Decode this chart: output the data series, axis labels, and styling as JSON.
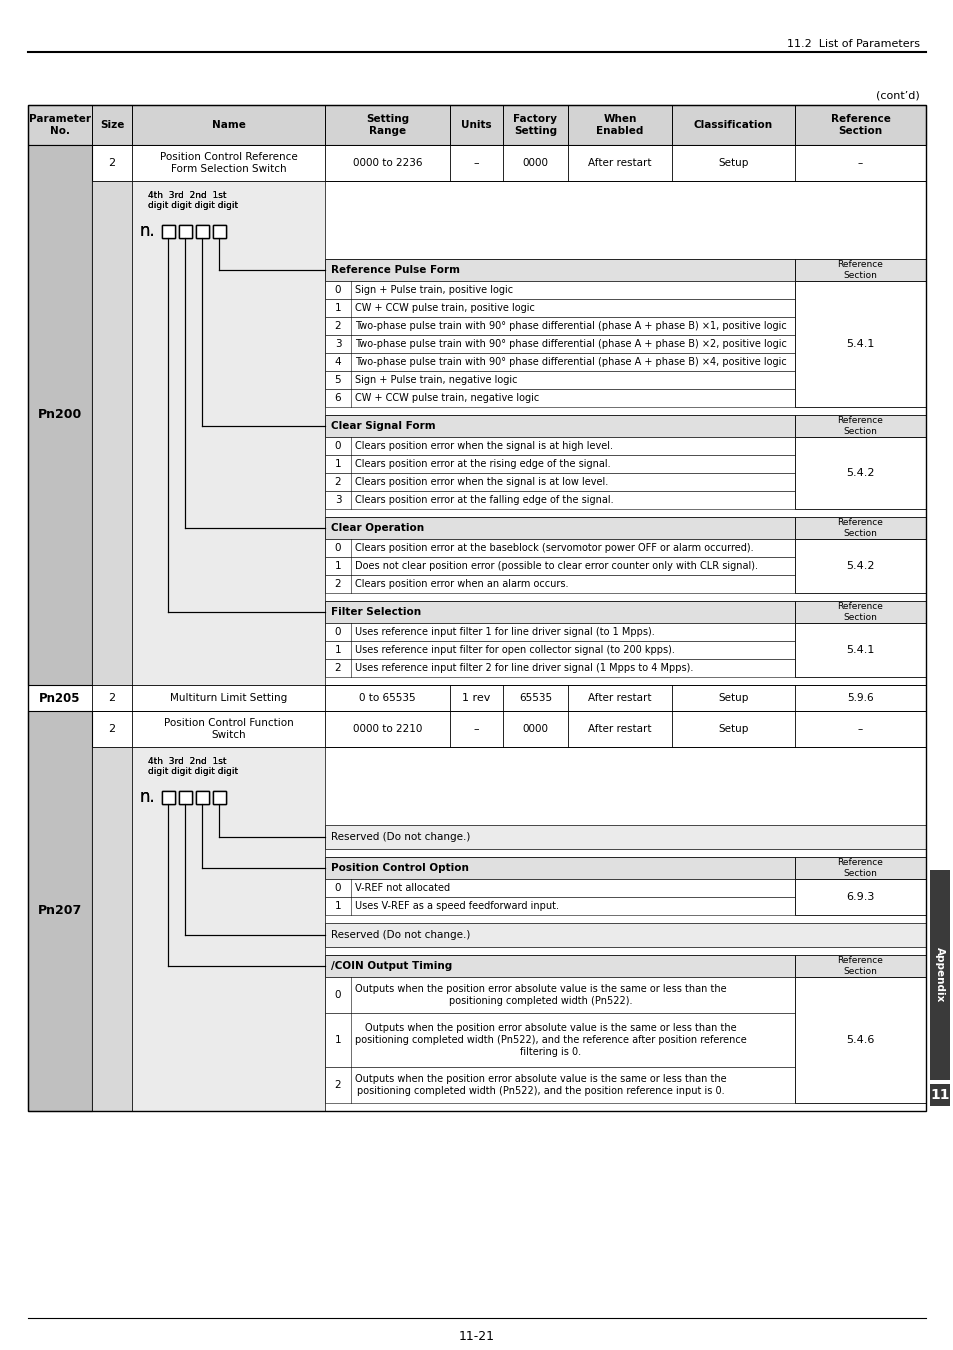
{
  "page_header": "11.2  List of Parameters",
  "page_footer": "11-21",
  "cont_label": "(cont’d)",
  "bg_color": "#ffffff",
  "header_bg": "#d3d3d3",
  "sub_header_bg": "#e0e0e0",
  "col_labels": [
    "Parameter\nNo.",
    "Size",
    "Name",
    "Setting\nRange",
    "Units",
    "Factory\nSetting",
    "When\nEnabled",
    "Classification",
    "Reference\nSection"
  ],
  "pn200_label": "Pn200",
  "pn207_label": "Pn207",
  "digit_label_line1": "4th  3rd  2nd  1st",
  "digit_label_line2": "digit digit digit digit",
  "sub_sections_pn200": [
    {
      "name": "Reference Pulse Form",
      "ref": "Reference\nSection",
      "items": [
        {
          "num": "0",
          "desc": "Sign + Pulse train, positive logic"
        },
        {
          "num": "1",
          "desc": "CW + CCW pulse train, positive logic"
        },
        {
          "num": "2",
          "desc": "Two-phase pulse train with 90° phase differential (phase A + phase B) ×1, positive logic"
        },
        {
          "num": "3",
          "desc": "Two-phase pulse train with 90° phase differential (phase A + phase B) ×2, positive logic"
        },
        {
          "num": "4",
          "desc": "Two-phase pulse train with 90° phase differential (phase A + phase B) ×4, positive logic"
        },
        {
          "num": "5",
          "desc": "Sign + Pulse train, negative logic"
        },
        {
          "num": "6",
          "desc": "CW + CCW pulse train, negative logic"
        }
      ],
      "side_ref": "5.4.1"
    },
    {
      "name": "Clear Signal Form",
      "ref": "Reference\nSection",
      "items": [
        {
          "num": "0",
          "desc": "Clears position error when the signal is at high level."
        },
        {
          "num": "1",
          "desc": "Clears position error at the rising edge of the signal."
        },
        {
          "num": "2",
          "desc": "Clears position error when the signal is at low level."
        },
        {
          "num": "3",
          "desc": "Clears position error at the falling edge of the signal."
        }
      ],
      "side_ref": "5.4.2"
    },
    {
      "name": "Clear Operation",
      "ref": "Reference\nSection",
      "items": [
        {
          "num": "0",
          "desc": "Clears position error at the baseblock (servomotor power OFF or alarm occurred)."
        },
        {
          "num": "1",
          "desc": "Does not clear position error (possible to clear error counter only with CLR signal)."
        },
        {
          "num": "2",
          "desc": "Clears position error when an alarm occurs."
        }
      ],
      "side_ref": "5.4.2"
    },
    {
      "name": "Filter Selection",
      "ref": "Reference\nSection",
      "items": [
        {
          "num": "0",
          "desc": "Uses reference input filter 1 for line driver signal (to 1 Mpps)."
        },
        {
          "num": "1",
          "desc": "Uses reference input filter for open collector signal (to 200 kpps)."
        },
        {
          "num": "2",
          "desc": "Uses reference input filter 2 for line driver signal (1 Mpps to 4 Mpps)."
        }
      ],
      "side_ref": "5.4.1"
    }
  ],
  "sub_sections_pn207": [
    {
      "name": "Reserved (Do not change.)",
      "type": "reserved",
      "items": [],
      "side_ref": ""
    },
    {
      "name": "Position Control Option",
      "ref": "Reference\nSection",
      "type": "normal",
      "items": [
        {
          "num": "0",
          "desc": "V-REF not allocated"
        },
        {
          "num": "1",
          "desc": "Uses V-REF as a speed feedforward input."
        }
      ],
      "side_ref": "6.9.3"
    },
    {
      "name": "Reserved (Do not change.)",
      "type": "reserved",
      "items": [],
      "side_ref": ""
    },
    {
      "name": "/COIN Output Timing",
      "ref": "Reference\nSection",
      "type": "normal",
      "items": [
        {
          "num": "0",
          "desc": "Outputs when the position error absolute value is the same or less than the\npositioning completed width (Pn522)."
        },
        {
          "num": "1",
          "desc": "Outputs when the position error absolute value is the same or less than the\npositioning completed width (Pn522), and the reference after position reference\nfiltering is 0."
        },
        {
          "num": "2",
          "desc": "Outputs when the position error absolute value is the same or less than the\npositioning completed width (Pn522), and the position reference input is 0."
        }
      ],
      "side_ref": "5.4.6"
    }
  ],
  "appendix_label": "Appendix",
  "chapter_num": "11"
}
